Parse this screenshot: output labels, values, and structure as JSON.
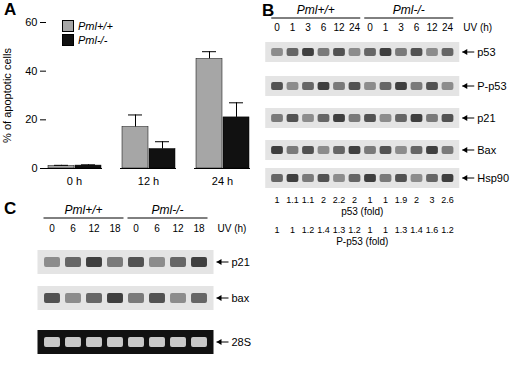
{
  "chart_data": {
    "type": "bar",
    "panel": "A",
    "categories": [
      "0 h",
      "12 h",
      "24 h"
    ],
    "series": [
      {
        "name": "Pml+/+",
        "color": "#a6a6a6",
        "values": [
          1,
          17,
          45
        ],
        "errors": [
          0.3,
          5,
          3
        ]
      },
      {
        "name": "Pml-/-",
        "color": "#111111",
        "values": [
          1.2,
          8,
          21
        ],
        "errors": [
          0.3,
          3,
          6
        ]
      }
    ],
    "y_label": "% of apoptotic cells",
    "ylim": [
      0,
      60
    ],
    "yticks": [
      0,
      20,
      40,
      60
    ],
    "legend": "top-left"
  },
  "blots": [
    {
      "panel": "B",
      "groups": [
        "Pml+/+",
        "Pml-/-"
      ],
      "lane_title": "UV (h)",
      "lanes": [
        "0",
        "1",
        "3",
        "6",
        "12",
        "24"
      ],
      "bands": [
        "p53",
        "P-p53",
        "p21",
        "Bax",
        "Hsp90"
      ],
      "quantification": [
        {
          "label": "p53 (fold)",
          "values": [
            1,
            1.1,
            1.1,
            2,
            2.2,
            2,
            1,
            1,
            1.9,
            2,
            3,
            2.6
          ]
        },
        {
          "label": "P-p53 (fold)",
          "values": [
            1,
            1,
            1.2,
            1.4,
            1.3,
            1.2,
            1,
            1,
            1.3,
            1.4,
            1.6,
            1.2
          ]
        }
      ]
    },
    {
      "panel": "C",
      "groups": [
        "Pml+/+",
        "Pml-/-"
      ],
      "lane_title": "UV (h)",
      "lanes": [
        "0",
        "6",
        "12",
        "18"
      ],
      "bands": [
        "p21",
        "bax",
        "28S"
      ]
    }
  ]
}
